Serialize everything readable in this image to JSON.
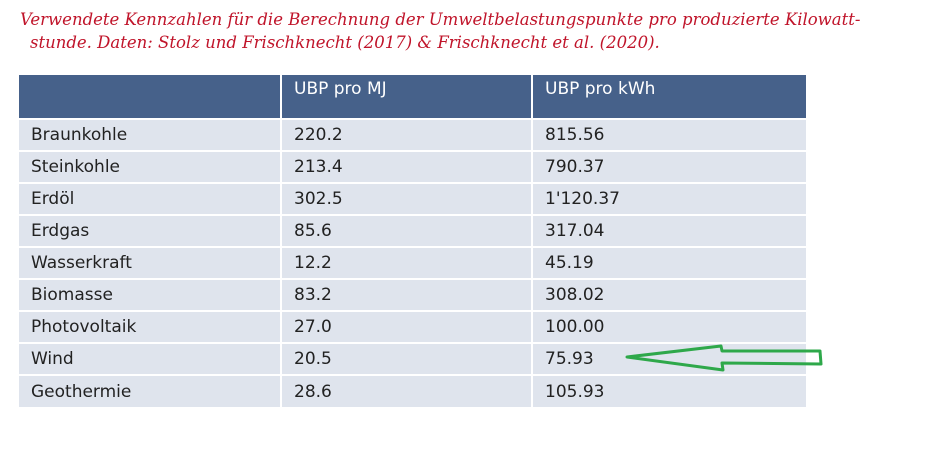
{
  "caption": {
    "line1": "Verwendete Kennzahlen für die Berechnung der Umweltbelastungspunkte pro produzierte Kilowatt-",
    "line2": "stunde. Daten: Stolz und Frischknecht (2017) & Frischknecht et al. (2020)."
  },
  "table": {
    "headers": [
      "",
      "UBP pro MJ",
      "UBP pro kWh"
    ],
    "rows": [
      {
        "name": "Braunkohle",
        "mj": "220.2",
        "kwh": "815.56"
      },
      {
        "name": "Steinkohle",
        "mj": "213.4",
        "kwh": "790.37"
      },
      {
        "name": "Erdöl",
        "mj": "302.5",
        "kwh": "1'120.37"
      },
      {
        "name": "Erdgas",
        "mj": "85.6",
        "kwh": "317.04"
      },
      {
        "name": "Wasserkraft",
        "mj": "12.2",
        "kwh": "45.19"
      },
      {
        "name": "Biomasse",
        "mj": "83.2",
        "kwh": "308.02"
      },
      {
        "name": "Photovoltaik",
        "mj": "27.0",
        "kwh": "100.00"
      },
      {
        "name": "Wind",
        "mj": "20.5",
        "kwh": "75.93"
      },
      {
        "name": "Geothermie",
        "mj": "28.6",
        "kwh": "105.93"
      }
    ]
  },
  "annotation": {
    "arrow_color": "#2ea84a"
  },
  "colors": {
    "caption": "#c0142a",
    "header_bg": "#46618a",
    "row_bg": "#dfe4ed"
  }
}
